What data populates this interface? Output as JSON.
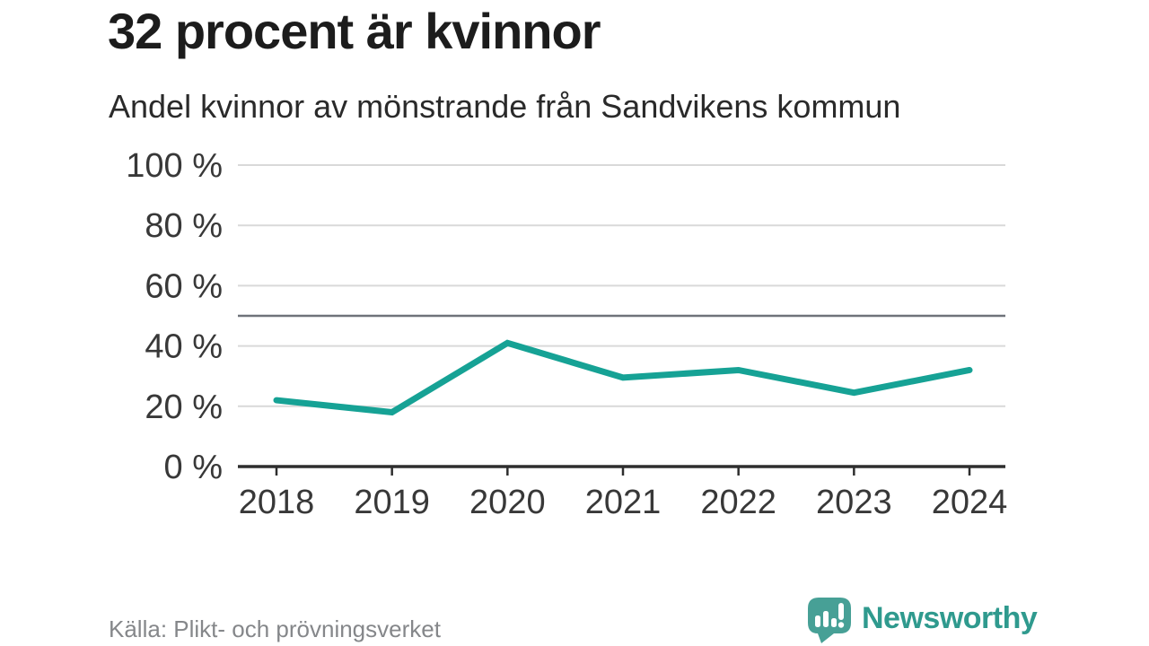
{
  "chart_data": {
    "type": "line",
    "title": "32 procent är kvinnor",
    "subtitle": "Andel kvinnor av mönstrande från Sandvikens kommun",
    "categories": [
      "2018",
      "2019",
      "2020",
      "2021",
      "2022",
      "2023",
      "2024"
    ],
    "values": [
      22,
      18,
      41,
      29.5,
      32,
      24.5,
      32
    ],
    "xlabel": "",
    "ylabel": "",
    "ylim": [
      0,
      100
    ],
    "yticks": [
      0,
      20,
      40,
      60,
      80,
      100
    ],
    "ytick_suffix": " %",
    "reference_line": 50,
    "grid": true,
    "legend": "none",
    "line_color": "#16a295",
    "grid_color": "#d9d9d9",
    "reference_line_color": "#6f737a",
    "axis_color": "#2e2e2e",
    "tick_label_color": "#383838"
  },
  "footer": {
    "source": "Källa: Plikt- och prövningsverket",
    "brand": "Newsworthy",
    "brand_color": "#2f9a8e",
    "logo_color": "#47a096"
  }
}
